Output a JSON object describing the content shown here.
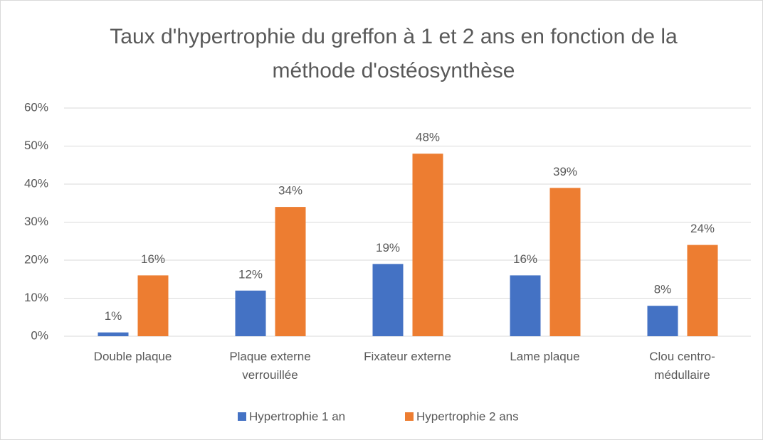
{
  "chart_data": {
    "type": "bar",
    "title": "Taux d'hypertrophie du greffon à 1 et 2 ans en fonction de la méthode d'ostéosynthèse",
    "categories": [
      "Double plaque",
      "Plaque externe verrouillée",
      "Fixateur externe",
      "Lame plaque",
      "Clou centro-médullaire"
    ],
    "series": [
      {
        "name": "Hypertrophie 1 an",
        "color": "#4472c4",
        "values": [
          1,
          12,
          19,
          16,
          8
        ],
        "value_labels": [
          "1%",
          "12%",
          "19%",
          "16%",
          "8%"
        ]
      },
      {
        "name": "Hypertrophie 2 ans",
        "color": "#ed7d31",
        "values": [
          16,
          34,
          48,
          39,
          24
        ],
        "value_labels": [
          "16%",
          "34%",
          "48%",
          "39%",
          "24%"
        ]
      }
    ],
    "ylim": [
      0,
      60
    ],
    "yticks": [
      {
        "value": 0,
        "label": "0%"
      },
      {
        "value": 10,
        "label": "10%"
      },
      {
        "value": 20,
        "label": "20%"
      },
      {
        "value": 30,
        "label": "30%"
      },
      {
        "value": 40,
        "label": "40%"
      },
      {
        "value": 50,
        "label": "50%"
      },
      {
        "value": 60,
        "label": "60%"
      }
    ],
    "grid": true,
    "legend": "bottom"
  }
}
